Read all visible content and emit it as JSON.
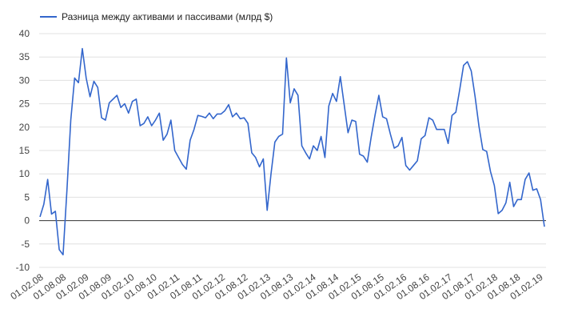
{
  "chart_data": {
    "type": "line",
    "title": "",
    "xlabel": "",
    "ylabel": "",
    "ylim": [
      -10,
      40
    ],
    "yticks": [
      -10,
      -5,
      0,
      5,
      10,
      15,
      20,
      25,
      30,
      35,
      40
    ],
    "grid": true,
    "legend_position": "top-left",
    "line_color": "#3366cc",
    "zero_line_color": "#333333",
    "grid_color": "#e0e0e0",
    "x_start": "01.02.08",
    "x_end": "01.02.19",
    "xtick_labels": [
      "01.02.08",
      "01.08.08",
      "01.02.09",
      "01.08.09",
      "01.02.10",
      "01.08.10",
      "01.02.11",
      "01.08.11",
      "01.02.12",
      "01.08.12",
      "01.02.13",
      "01.08.13",
      "01.02.14",
      "01.08.14",
      "01.02.15",
      "01.08.15",
      "01.02.16",
      "01.08.16",
      "01.02.17",
      "01.08.17",
      "01.02.18",
      "01.08.18",
      "01.02.19"
    ],
    "series": [
      {
        "name": "Разница между активами и пассивами (млрд $)",
        "values": [
          0.8,
          3.5,
          8.8,
          1.4,
          2.0,
          -6.2,
          -7.3,
          6.5,
          21.5,
          30.5,
          29.5,
          36.8,
          30.5,
          26.5,
          29.8,
          28.5,
          22.0,
          21.5,
          25.2,
          26.0,
          26.8,
          24.2,
          25.0,
          23.0,
          25.5,
          26.0,
          20.3,
          20.8,
          22.2,
          20.3,
          21.5,
          23.0,
          17.2,
          18.5,
          21.5,
          15.0,
          13.5,
          12.0,
          11.0,
          17.2,
          19.5,
          22.5,
          22.3,
          22.0,
          23.0,
          21.8,
          22.8,
          22.8,
          23.5,
          24.8,
          22.2,
          23.0,
          21.8,
          22.0,
          20.8,
          14.5,
          13.5,
          11.5,
          13.2,
          2.2,
          10.0,
          16.8,
          18.0,
          18.5,
          34.8,
          25.2,
          28.2,
          26.8,
          16.0,
          14.5,
          13.2,
          16.0,
          15.0,
          18.0,
          13.5,
          24.5,
          27.2,
          25.5,
          30.8,
          24.8,
          18.8,
          21.5,
          21.2,
          14.2,
          13.8,
          12.5,
          17.8,
          22.5,
          26.8,
          22.2,
          21.8,
          18.5,
          15.5,
          16.0,
          17.8,
          11.8,
          10.8,
          11.8,
          12.8,
          17.5,
          18.2,
          22.0,
          21.5,
          19.5,
          19.5,
          19.5,
          16.5,
          22.5,
          23.2,
          28.0,
          33.2,
          34.0,
          32.0,
          26.5,
          20.2,
          15.2,
          14.8,
          10.5,
          7.5,
          1.5,
          2.2,
          3.8,
          8.2,
          3.0,
          4.5,
          4.5,
          8.8,
          10.2,
          6.5,
          6.8,
          4.5,
          -1.3
        ]
      }
    ]
  }
}
